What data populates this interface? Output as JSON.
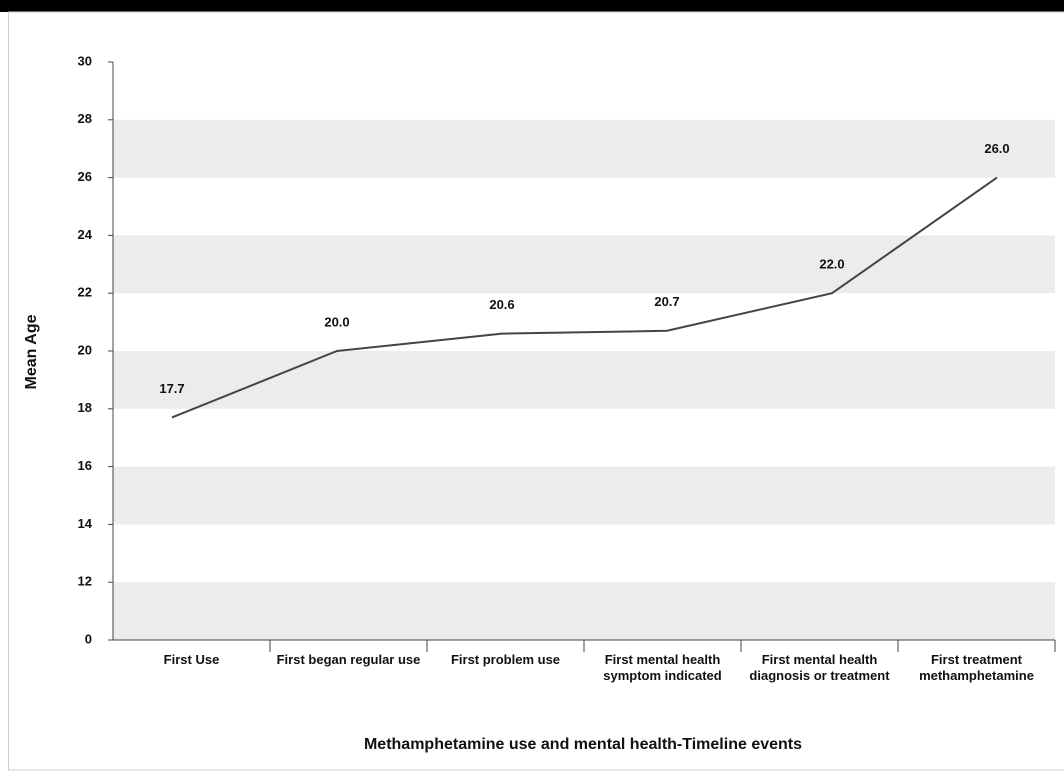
{
  "chart_data": {
    "type": "line",
    "x_label": "Methamphetamine use and mental health-Timeline events",
    "y_label": "Mean Age",
    "categories": [
      "First Use",
      "First began regular use",
      "First problem use",
      "First mental health symptom indicated",
      "First mental health diagnosis or treatment",
      "First treatment methamphetamine"
    ],
    "series": [
      {
        "name": "Mean Age",
        "color": "#444444",
        "values": [
          17.7,
          20.0,
          20.6,
          20.7,
          22.0,
          26.0
        ],
        "value_labels": [
          "17.7",
          "20.0",
          "20.6",
          "20.7",
          "22.0",
          "26.0"
        ]
      }
    ],
    "ylim": [
      0,
      30
    ],
    "yticks": [
      0,
      12,
      14,
      16,
      18,
      20,
      22,
      24,
      26,
      28,
      30
    ],
    "axis_break": true,
    "grid": "bands"
  }
}
